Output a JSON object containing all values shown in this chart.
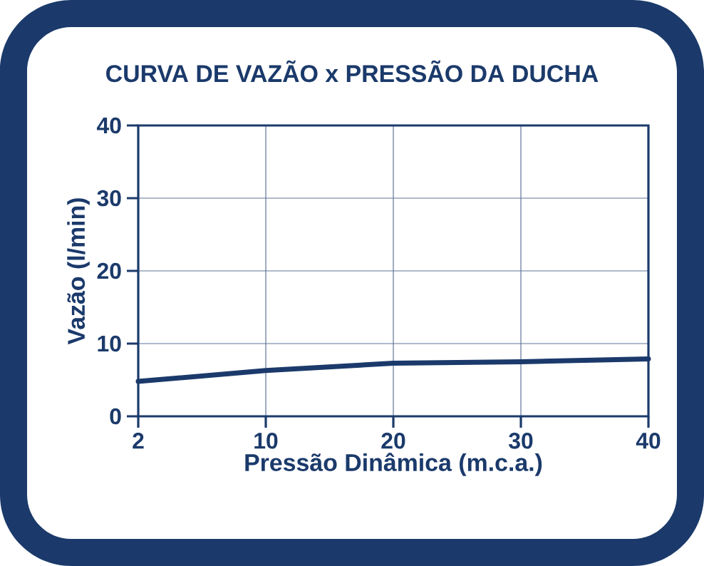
{
  "chart_data": {
    "type": "line",
    "title": "CURVA DE VAZÃO x PRESSÃO DA DUCHA",
    "xlabel": "Pressão Dinâmica (m.c.a.)",
    "ylabel": "Vazão (l/min)",
    "categories": [
      "2",
      "10",
      "20",
      "30",
      "40"
    ],
    "series": [
      {
        "color": "#1b3a6b",
        "values": [
          4.8,
          6.3,
          7.3,
          7.5,
          7.9
        ]
      }
    ],
    "ylim": [
      0,
      40
    ],
    "yticks": [
      0,
      10,
      20,
      30,
      40
    ],
    "grid": true,
    "marker": "none",
    "line_style": "solid"
  }
}
